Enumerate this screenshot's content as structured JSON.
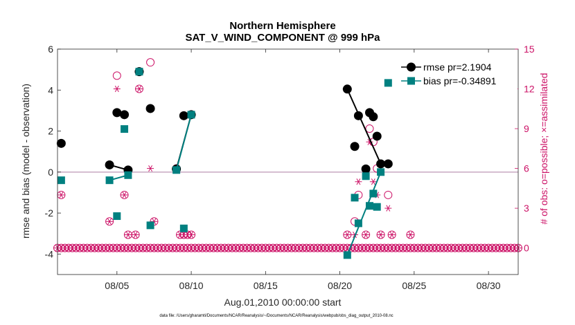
{
  "chart_data": {
    "type": "line",
    "title": [
      "Northern Hemisphere",
      "SAT_V_WIND_COMPONENT @ 999 hPa"
    ],
    "xlabel": "Aug.01,2010 00:00:00 start",
    "ylabel": "rmse and bias (model - observation)",
    "y2label": "# of obs: o=possible; ×=assimilated",
    "footnote": "data file: /Users/gharamti/Documents/NCAR/Reanalysis/~/Documents/NCAR/Reanalysis/webpub/obs_diag_output_2010-08.nc",
    "xlim": [
      1,
      32
    ],
    "ylim": [
      -5,
      6
    ],
    "y2lim": [
      -2,
      15
    ],
    "xticks": [
      5,
      10,
      15,
      20,
      25,
      30
    ],
    "xticklabels": [
      "08/05",
      "08/10",
      "08/15",
      "08/20",
      "08/25",
      "08/30"
    ],
    "yticks": [
      -4,
      -2,
      0,
      2,
      4,
      6
    ],
    "y2ticks": [
      0,
      3,
      6,
      9,
      12,
      15
    ],
    "zero_line": 0,
    "colors": {
      "rmse": "#000000",
      "bias": "#008080",
      "obs": "#cc1166",
      "zero": "#c8a8c0"
    },
    "series": [
      {
        "name": "rmse",
        "label": "rmse pr=2.1904",
        "x": [
          1.25,
          4.5,
          5.0,
          5.5,
          5.75,
          6.5,
          7.25,
          9.0,
          9.5,
          10.0,
          20.5,
          21.0,
          21.25,
          21.75,
          22.0,
          22.25,
          22.5,
          22.75,
          23.25
        ],
        "y": [
          1.4,
          0.35,
          2.9,
          2.8,
          0.1,
          4.9,
          3.1,
          0.15,
          2.75,
          2.8,
          4.05,
          1.25,
          2.75,
          0.15,
          2.9,
          2.7,
          1.75,
          0.4,
          0.4
        ],
        "segments": [
          [
            1,
            4
          ],
          [
            7,
            9
          ],
          [
            10,
            17
          ]
        ]
      },
      {
        "name": "bias",
        "label": "bias pr=-0.34891",
        "x": [
          1.25,
          4.5,
          5.0,
          5.5,
          5.75,
          6.5,
          7.25,
          9.0,
          9.5,
          10.0,
          20.5,
          21.0,
          21.25,
          21.75,
          22.0,
          22.25,
          22.5,
          22.75,
          23.25
        ],
        "y": [
          -0.4,
          -0.4,
          -2.15,
          2.1,
          -0.15,
          4.9,
          -2.6,
          0.1,
          -2.75,
          2.8,
          -4.05,
          -1.25,
          -2.5,
          -0.2,
          -1.65,
          -1.05,
          -1.7,
          0.0,
          4.35
        ],
        "segments": [
          [
            1,
            4
          ],
          [
            7,
            9
          ],
          [
            10,
            17
          ]
        ]
      }
    ],
    "obs_possible": {
      "x": [
        1.25,
        4.5,
        5.0,
        5.5,
        5.75,
        6.25,
        6.5,
        7.25,
        7.5,
        9.0,
        9.25,
        9.5,
        9.75,
        10.0,
        20.5,
        21.0,
        21.25,
        21.75,
        22.0,
        22.25,
        22.5,
        22.75,
        23.25,
        23.5,
        24.75
      ],
      "y": [
        4,
        2,
        13,
        4,
        1,
        1,
        12,
        14,
        2,
        6,
        1,
        1,
        1,
        1,
        1,
        2,
        4,
        1,
        9,
        8,
        6,
        1,
        4,
        1,
        1
      ]
    },
    "obs_assimilated": {
      "x": [
        1.25,
        4.5,
        5.0,
        5.5,
        5.75,
        6.25,
        6.5,
        7.25,
        7.5,
        9.0,
        9.25,
        9.5,
        9.75,
        10.0,
        20.5,
        21.0,
        21.25,
        21.75,
        22.0,
        22.25,
        22.5,
        22.75,
        23.25,
        23.5,
        24.75
      ],
      "y": [
        4,
        2,
        12,
        4,
        1,
        1,
        12,
        6,
        2,
        6,
        1,
        1,
        1,
        1,
        1,
        1,
        5,
        1,
        8,
        5,
        4,
        1,
        3,
        1,
        1
      ]
    }
  }
}
